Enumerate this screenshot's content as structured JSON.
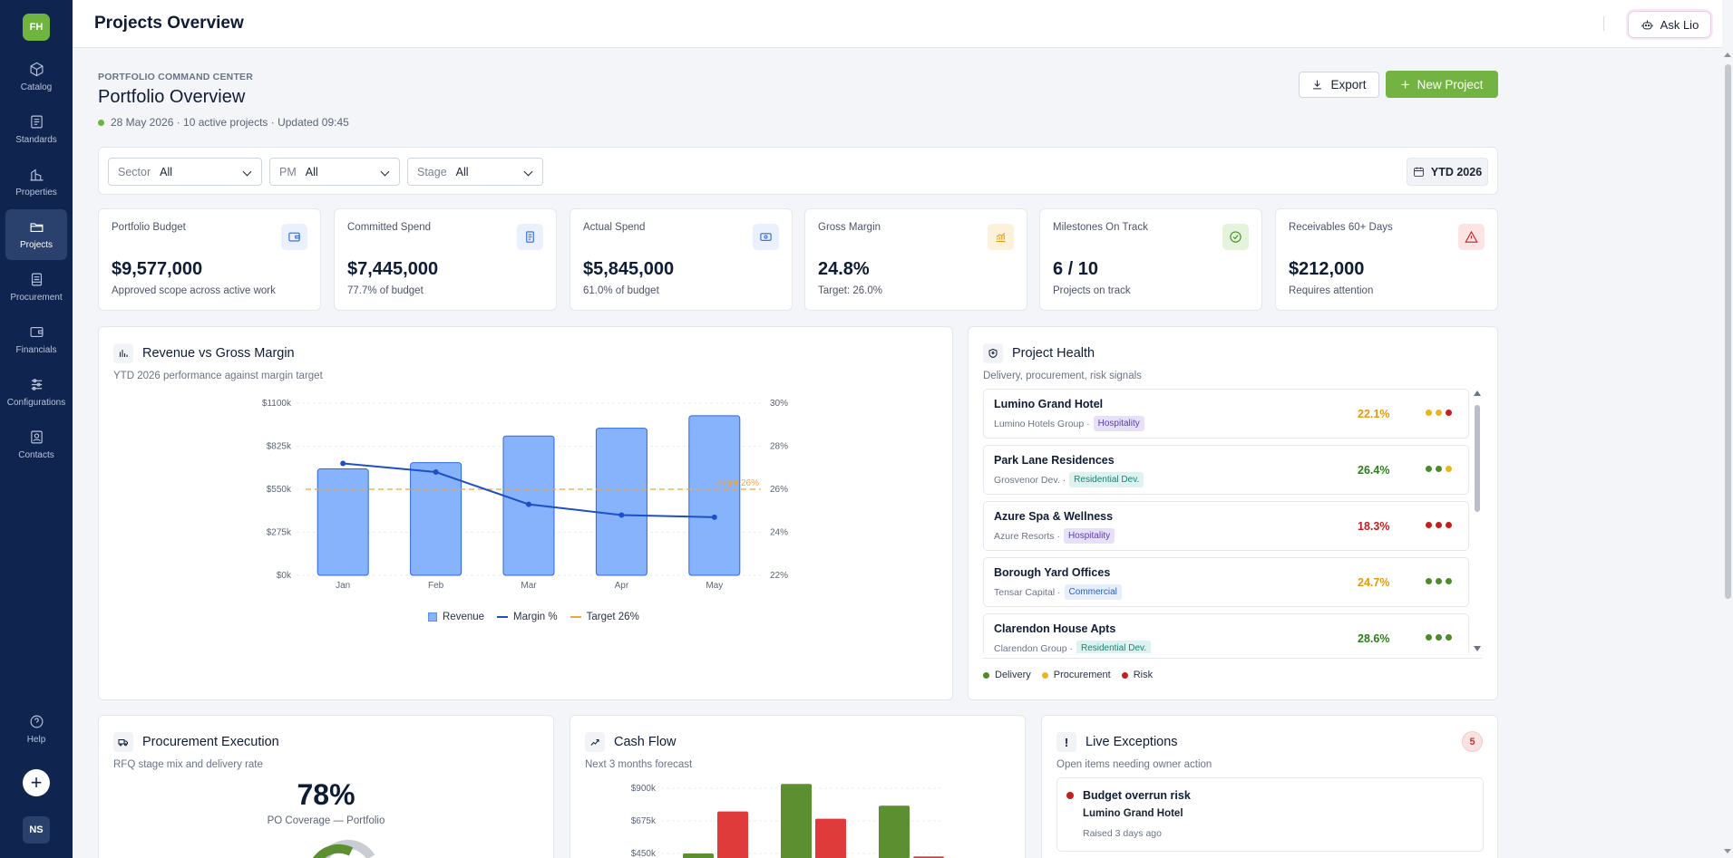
{
  "app": {
    "logo_initials": "FH",
    "user_initials": "NS",
    "page_header": "Projects Overview",
    "ask_label": "Ask Lio"
  },
  "sidebar": {
    "items": [
      {
        "label": "Catalog",
        "icon": "cube-icon"
      },
      {
        "label": "Standards",
        "icon": "document-icon"
      },
      {
        "label": "Properties",
        "icon": "building-icon"
      },
      {
        "label": "Projects",
        "icon": "folder-icon",
        "active": true
      },
      {
        "label": "Procurement",
        "icon": "clipboard-icon"
      },
      {
        "label": "Financials",
        "icon": "wallet-icon"
      },
      {
        "label": "Configurations",
        "icon": "sliders-icon"
      },
      {
        "label": "Contacts",
        "icon": "contact-card-icon"
      }
    ],
    "help_label": "Help",
    "add_symbol": "+"
  },
  "header": {
    "eyebrow": "PORTFOLIO COMMAND CENTER",
    "title": "Portfolio Overview",
    "meta": "28 May 2026 · 10 active projects · Updated 09:45",
    "export_label": "Export",
    "new_project_label": "New Project"
  },
  "filters": {
    "sector": {
      "label": "Sector",
      "value": "All"
    },
    "pm": {
      "label": "PM",
      "value": "All"
    },
    "stage": {
      "label": "Stage",
      "value": "All"
    },
    "period": "YTD 2026"
  },
  "kpis": [
    {
      "label": "Portfolio Budget",
      "value": "$9,577,000",
      "sub": "Approved scope across active work",
      "icon": "wallet-icon",
      "tone": "blue"
    },
    {
      "label": "Committed Spend",
      "value": "$7,445,000",
      "sub": "77.7% of budget",
      "icon": "receipt-icon",
      "tone": "blue"
    },
    {
      "label": "Actual Spend",
      "value": "$5,845,000",
      "sub": "61.0% of budget",
      "icon": "cash-icon",
      "tone": "blue"
    },
    {
      "label": "Gross Margin",
      "value": "24.8%",
      "sub": "Target: 26.0%",
      "icon": "chart-up-icon",
      "tone": "amber"
    },
    {
      "label": "Milestones On Track",
      "value": "6 / 10",
      "sub": "Projects on track",
      "icon": "check-circle-icon",
      "tone": "green"
    },
    {
      "label": "Receivables 60+ Days",
      "value": "$212,000",
      "sub": "Requires attention",
      "icon": "warning-icon",
      "tone": "red"
    }
  ],
  "revenue_panel": {
    "title": "Revenue vs Gross Margin",
    "subtitle": "YTD 2026 performance against margin target",
    "target_label": "Target 26%",
    "legend": [
      "Revenue",
      "Margin %",
      "Target 26%"
    ]
  },
  "chart_data": {
    "type": "bar",
    "categories": [
      "Jan",
      "Feb",
      "Mar",
      "Apr",
      "May"
    ],
    "series": [
      {
        "name": "Revenue",
        "kind": "bar",
        "axis": "left",
        "values": [
          680,
          720,
          890,
          940,
          1020
        ]
      },
      {
        "name": "Margin %",
        "kind": "line",
        "axis": "right",
        "values": [
          27.2,
          26.8,
          25.3,
          24.8,
          24.7
        ]
      }
    ],
    "target": {
      "name": "Target 26%",
      "value": 26
    },
    "y_left": {
      "ticks": [
        "$0k",
        "$275k",
        "$550k",
        "$825k",
        "$1100k"
      ],
      "range": [
        0,
        1100
      ]
    },
    "y_right": {
      "ticks": [
        "22%",
        "24%",
        "26%",
        "28%",
        "30%"
      ],
      "range": [
        22,
        30
      ]
    },
    "grid": true,
    "legend_position": "bottom",
    "colors": {
      "revenue": "#86b3fb",
      "revenue_stroke": "#2f67d8",
      "margin": "#1d4fc7",
      "target": "#f3a43b"
    }
  },
  "health_panel": {
    "title": "Project Health",
    "subtitle": "Delivery, procurement, risk signals",
    "legend": [
      "Delivery",
      "Procurement",
      "Risk"
    ],
    "projects": [
      {
        "name": "Lumino Grand Hotel",
        "client": "Lumino Hotels Group ·",
        "tag": "Hospitality",
        "tag_kind": "hosp",
        "pct": "22.1%",
        "pct_tone": "amber",
        "dots": [
          "amber",
          "amber",
          "red"
        ]
      },
      {
        "name": "Park Lane Residences",
        "client": "Grosvenor Dev. ·",
        "tag": "Residential Dev.",
        "tag_kind": "res",
        "pct": "26.4%",
        "pct_tone": "green",
        "dots": [
          "green",
          "green",
          "amber"
        ]
      },
      {
        "name": "Azure Spa & Wellness",
        "client": "Azure Resorts ·",
        "tag": "Hospitality",
        "tag_kind": "hosp",
        "pct": "18.3%",
        "pct_tone": "red",
        "dots": [
          "red",
          "red",
          "red"
        ]
      },
      {
        "name": "Borough Yard Offices",
        "client": "Tensar Capital ·",
        "tag": "Commercial",
        "tag_kind": "com",
        "pct": "24.7%",
        "pct_tone": "amber",
        "dots": [
          "green",
          "green",
          "green"
        ]
      },
      {
        "name": "Clarendon House Apts",
        "client": "Clarendon Group ·",
        "tag": "Residential Dev.",
        "tag_kind": "res",
        "pct": "28.6%",
        "pct_tone": "green",
        "dots": [
          "green",
          "green",
          "green"
        ]
      }
    ]
  },
  "procurement_panel": {
    "title": "Procurement Execution",
    "subtitle": "RFQ stage mix and delivery rate",
    "big_value": "78%",
    "big_label": "PO Coverage — Portfolio"
  },
  "cashflow_panel": {
    "title": "Cash Flow",
    "subtitle": "Next 3 months forecast",
    "y_ticks": [
      "$900k",
      "$675k",
      "$450k"
    ],
    "bars": [
      {
        "inflow": 450,
        "outflow": 740
      },
      {
        "inflow": 930,
        "outflow": 690
      },
      {
        "inflow": 780,
        "outflow": 430
      }
    ]
  },
  "exceptions_panel": {
    "title": "Live Exceptions",
    "subtitle": "Open items needing owner action",
    "count": "5",
    "items": [
      {
        "title": "Budget overrun risk",
        "project": "Lumino Grand Hotel",
        "raised": "Raised 3 days ago"
      }
    ]
  }
}
